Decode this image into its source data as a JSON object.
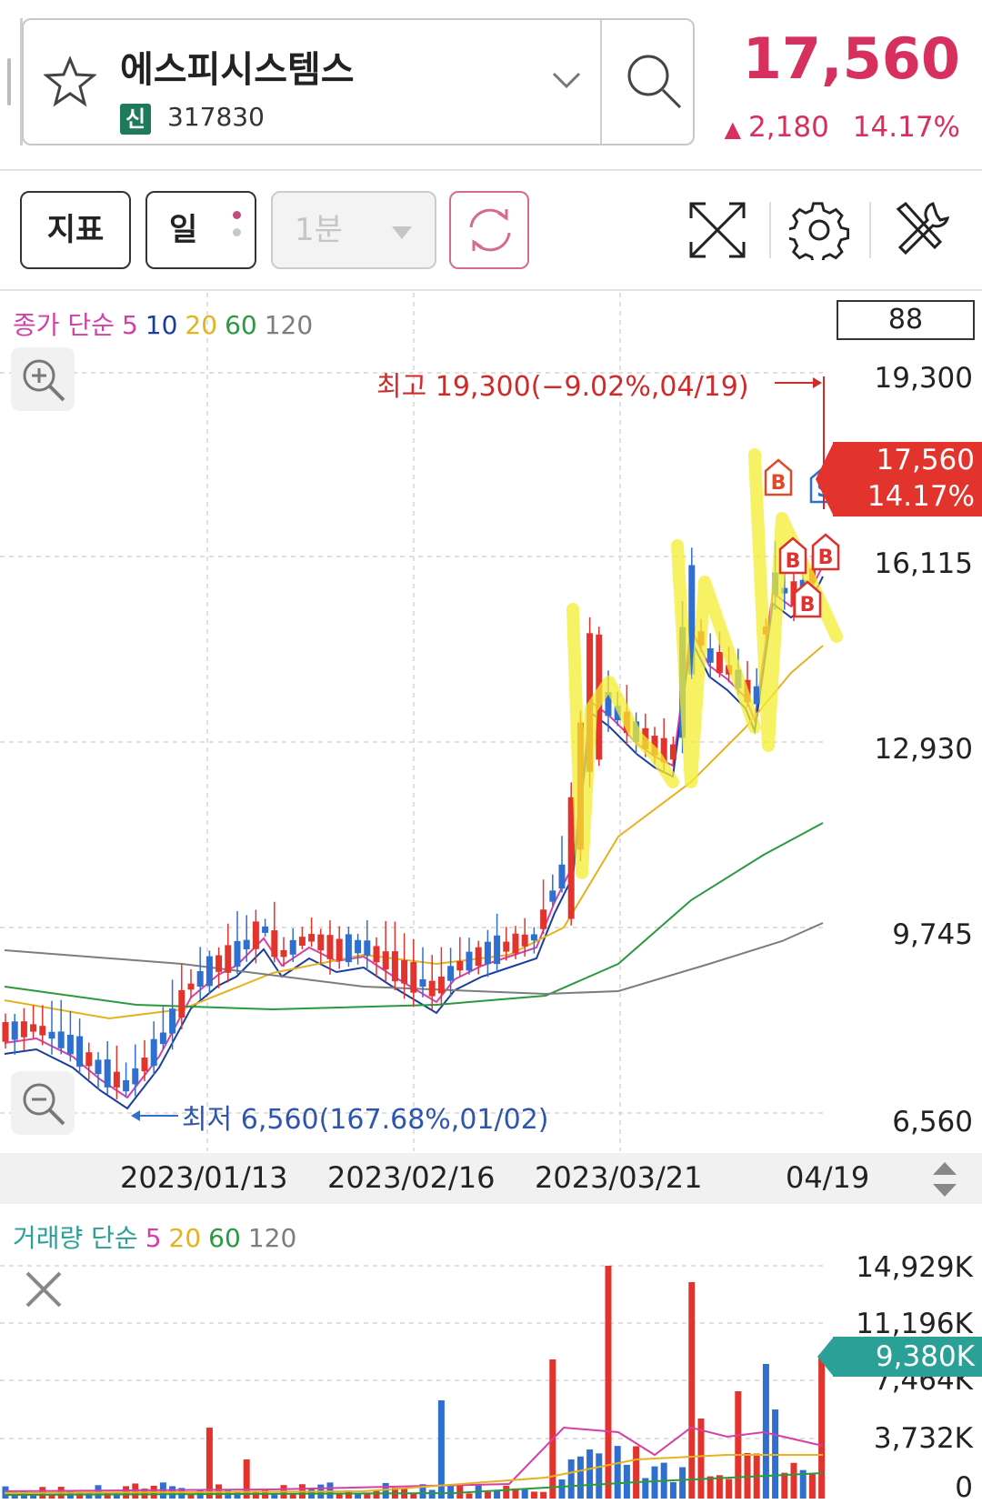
{
  "stock": {
    "name": "에스피시스템스",
    "badge": "신",
    "code": "317830",
    "price": "17,560",
    "change_arrow": "▲",
    "change_amount": "2,180",
    "change_percent": "14.17%"
  },
  "toolbar": {
    "indicator_label": "지표",
    "period_label": "일",
    "interval_label": "1분"
  },
  "chart": {
    "legend": {
      "prefix": "종가 단순",
      "ma5": "5",
      "ma10": "10",
      "ma20": "20",
      "ma60": "60",
      "ma120": "120"
    },
    "count": "88",
    "y_labels": [
      "19,300",
      "16,115",
      "12,930",
      "9,745",
      "6,560"
    ],
    "price_tag_value": "17,560",
    "price_tag_percent": "14.17%",
    "high_note": "최고 19,300(−9.02%,04/19)",
    "low_note": "최저 6,560(167.68%,01/02)",
    "markers": [
      "B",
      "B",
      "B",
      "B",
      "S"
    ],
    "dates": [
      "2023/01/13",
      "2023/02/16",
      "2023/03/21",
      "04/19"
    ]
  },
  "volume": {
    "legend": {
      "prefix": "거래량 단순",
      "ma5": "5",
      "ma20": "20",
      "ma60": "60",
      "ma120": "120"
    },
    "y_labels": [
      "14,929K",
      "11,196K",
      "7,464K",
      "3,732K",
      "0"
    ],
    "tag_value": "9,380K"
  },
  "colors": {
    "up": "#e3332d",
    "down": "#2f6fd0",
    "ma5": "#d63fa8",
    "ma10": "#1a3da0",
    "ma20": "#e6b21e",
    "ma60": "#2a9a3e",
    "ma120": "#7d7d7d",
    "price": "#d7305e"
  },
  "chart_data": {
    "type": "candlestick",
    "x_range": [
      "2023-01-02",
      "2023-04-19"
    ],
    "ylim": [
      6560,
      19300
    ],
    "y_ticks": [
      6560,
      9745,
      12930,
      16115,
      19300
    ],
    "high": {
      "value": 19300,
      "date": "04/19"
    },
    "low": {
      "value": 6560,
      "date": "01/02"
    },
    "last_close": 17560,
    "volume_ylim": [
      0,
      14929
    ],
    "volume_ticks": [
      0,
      3732,
      7464,
      11196,
      14929
    ],
    "volume_last": 9380
  }
}
